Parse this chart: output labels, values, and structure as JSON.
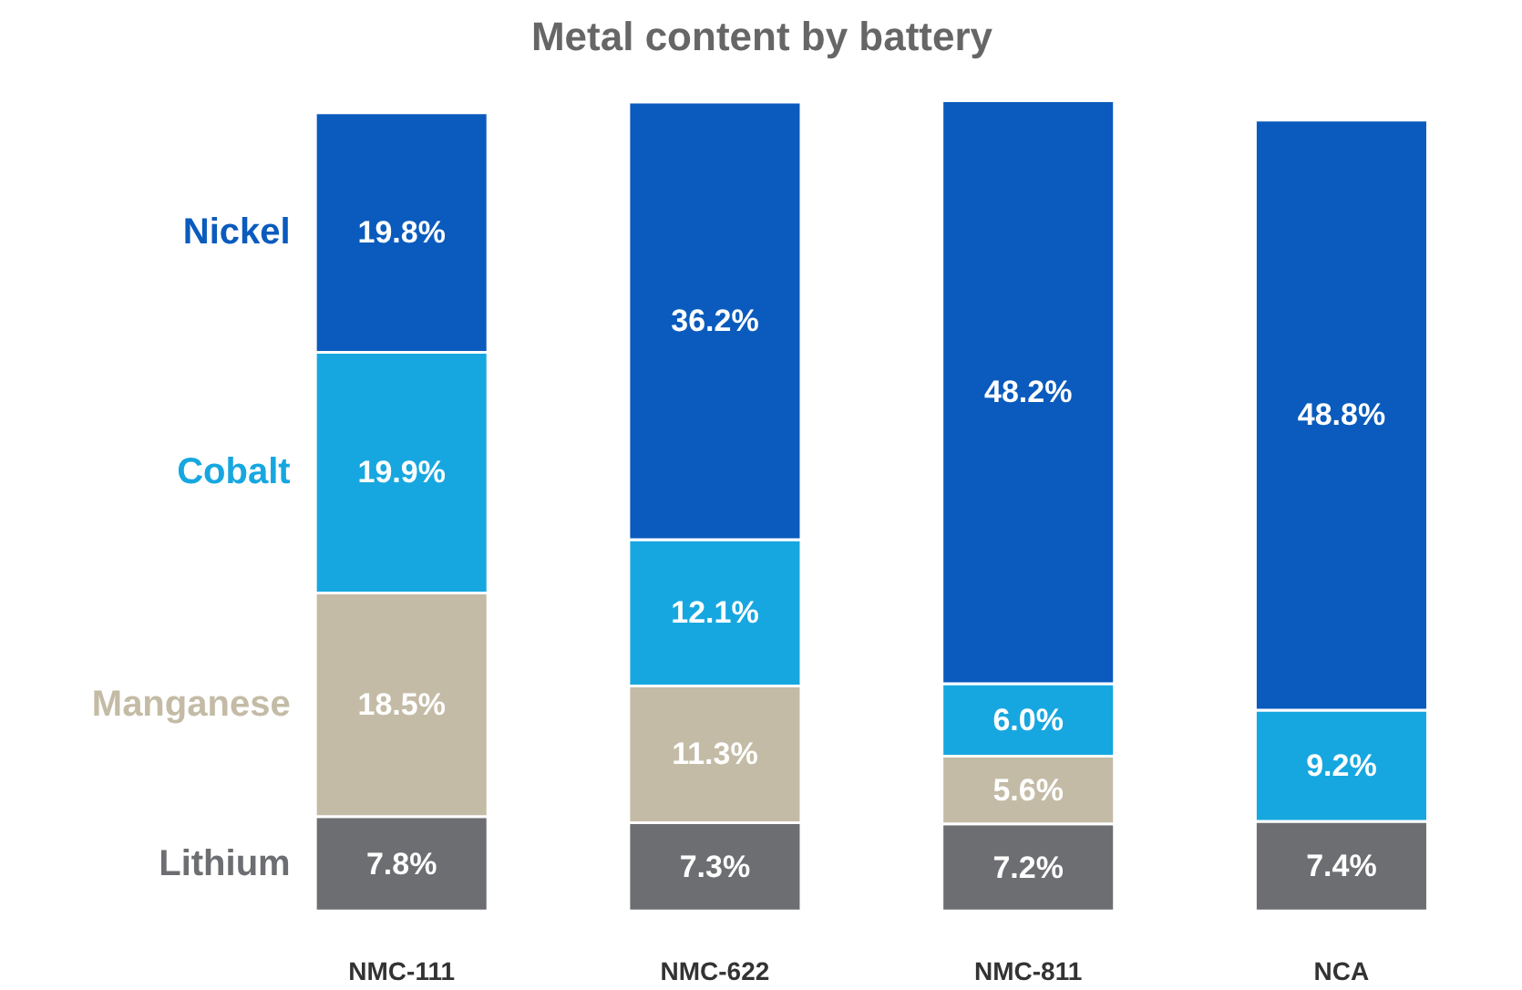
{
  "chart_data": {
    "type": "bar",
    "title": "Metal content by battery",
    "stacked": true,
    "categories": [
      "NMC-111",
      "NMC-622",
      "NMC-811",
      "NCA"
    ],
    "series": [
      {
        "name": "Lithium",
        "color": "#6d6e71",
        "values": [
          7.8,
          7.3,
          7.2,
          7.4
        ],
        "value_labels": [
          "7.8%",
          "7.3%",
          "7.2%",
          "7.4%"
        ]
      },
      {
        "name": "Manganese",
        "color": "#c4bba6",
        "values": [
          18.5,
          11.3,
          5.6,
          null
        ],
        "value_labels": [
          "18.5%",
          "11.3%",
          "5.6%",
          null
        ]
      },
      {
        "name": "Cobalt",
        "color": "#17a7e0",
        "values": [
          19.9,
          12.1,
          6.0,
          9.2
        ],
        "value_labels": [
          "19.9%",
          "12.1%",
          "6.0%",
          "9.2%"
        ]
      },
      {
        "name": "Nickel",
        "color": "#0a5bbd",
        "values": [
          19.8,
          36.2,
          48.2,
          48.8
        ],
        "value_labels": [
          "19.8%",
          "36.2%",
          "48.2%",
          "48.8%"
        ]
      }
    ]
  }
}
